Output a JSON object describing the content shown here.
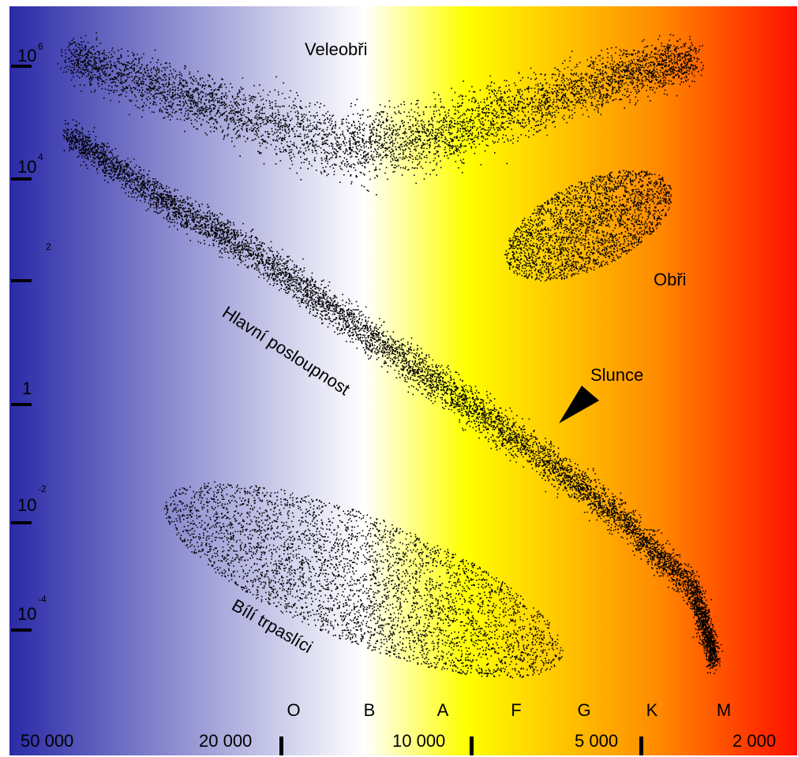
{
  "colors": {
    "hot_blue": "#2a2aa8",
    "white": "#ffffff",
    "yellow": "#ffff00",
    "orange": "#ff8c00",
    "red": "#ff1000",
    "stars": "#000000"
  },
  "regions": {
    "supergiants": "Veleobři",
    "giants": "Obři",
    "main_sequence": "Hlavní posloupnost",
    "sun": "Slunce",
    "white_dwarfs": "Bílí trpaslíci"
  },
  "luminosity_axis": {
    "ticks": [
      {
        "base": "10",
        "exp": "6"
      },
      {
        "base": "10",
        "exp": "4"
      },
      {
        "base": "",
        "exp": "2"
      },
      {
        "base": "1",
        "exp": ""
      },
      {
        "base": "10",
        "exp": "-2"
      },
      {
        "base": "10",
        "exp": "-4"
      }
    ]
  },
  "spectral_classes": [
    "O",
    "B",
    "A",
    "F",
    "G",
    "K",
    "M"
  ],
  "temperature_axis": [
    "50 000",
    "20 000",
    "10 000",
    "5 000",
    "2 000"
  ]
}
